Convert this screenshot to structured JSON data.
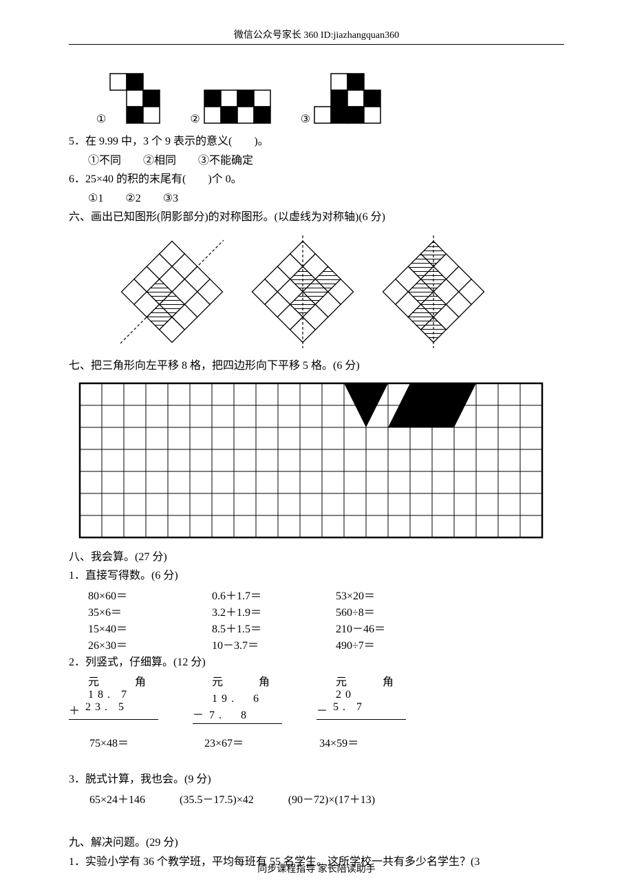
{
  "header": "微信公众号家长 360 ID:jiazhangquan360",
  "footer": "同步课程指导 家长陪读助手",
  "figure_options": {
    "labels": [
      "①",
      "②",
      "③"
    ],
    "patterns": [
      {
        "rows": 3,
        "cols": 3,
        "filled": [
          [
            0,
            1
          ],
          [
            1,
            0
          ],
          [
            1,
            2
          ],
          [
            2,
            1
          ]
        ],
        "extra_right": false,
        "stagger": true
      },
      {
        "rows": 2,
        "cols": 4,
        "filled": [
          [
            0,
            0
          ],
          [
            0,
            2
          ],
          [
            1,
            1
          ],
          [
            1,
            3
          ]
        ],
        "extra_right": false,
        "stagger": false
      },
      {
        "rows": 2,
        "cols": 3,
        "filled": [
          [
            0,
            0
          ],
          [
            0,
            2
          ],
          [
            1,
            1
          ]
        ],
        "top_offset": true
      }
    ],
    "cell": 24
  },
  "q5": {
    "text": "5．在 9.99 中，3 个 9 表示的意义(　　)。",
    "opts": "①不同　　②相同　　③不能确定"
  },
  "q6": {
    "text": "6．25×40 的积的末尾有(　　)个 0。",
    "opts": "①1　　②2　　③3"
  },
  "sec6": {
    "title": "六、画出已知图形(阴影部分)的对称图形。(以虚线为对称轴)(6 分)",
    "diamonds": {
      "size": 4,
      "shaded": [
        [
          [
            2,
            1
          ],
          [
            2,
            2
          ],
          [
            3,
            2
          ]
        ],
        [
          [
            0,
            2
          ],
          [
            1,
            2
          ],
          [
            2,
            2
          ],
          [
            1,
            1
          ]
        ],
        [
          [
            0,
            0
          ],
          [
            1,
            1
          ],
          [
            2,
            2
          ],
          [
            3,
            3
          ],
          [
            1,
            0
          ],
          [
            2,
            1
          ],
          [
            3,
            2
          ]
        ]
      ],
      "axis": [
        "diag",
        "vert",
        "vert"
      ]
    }
  },
  "sec7": {
    "title": "七、把三角形向左平移 8 格，把四边形向下平移 5 格。(6 分)",
    "grid": {
      "rows": 7,
      "cols": 21,
      "cell": 32,
      "triangle": {
        "c": 12,
        "r": 0
      },
      "quad": {
        "c": 14,
        "r": 0
      }
    }
  },
  "sec8": {
    "title": "八、我会算。(27 分)",
    "p1": {
      "title": "1．直接写得数。(6 分)",
      "rows": [
        [
          "80×60＝",
          "0.6＋1.7＝",
          "53×20＝"
        ],
        [
          "35×6＝",
          "3.2＋1.9＝",
          "560÷8＝"
        ],
        [
          "15×40＝",
          "8.5＋1.5＝",
          "210－46＝"
        ],
        [
          "26×30＝",
          "10－3.7＝",
          "490÷7＝"
        ]
      ]
    },
    "p2": {
      "title": "2．列竖式，仔细算。(12 分)",
      "hdr": "元　角",
      "cols": [
        {
          "a": "18. 7",
          "op": "＋",
          "b": "23. 5"
        },
        {
          "a": "19.　6",
          "op": "－",
          "b": " 7.　8"
        },
        {
          "a": "20",
          "op": "－",
          "b": " 5. 7"
        }
      ],
      "mults": [
        "75×48＝",
        "23×67＝",
        "34×59＝"
      ]
    },
    "p3": {
      "title": "3．脱式计算，我也会。(9 分)",
      "exprs": [
        "65×24＋146",
        "(35.5－17.5)×42",
        "(90－72)×(17＋13)"
      ]
    }
  },
  "sec9": {
    "title": "九、解决问题。(29 分)",
    "q1": "1．实验小学有 36 个教学班，平均每班有 55 名学生。这所学校一共有多少名学生？(3"
  },
  "colors": {
    "fg": "#000000",
    "bg": "#ffffff",
    "hatch": "#000000"
  }
}
